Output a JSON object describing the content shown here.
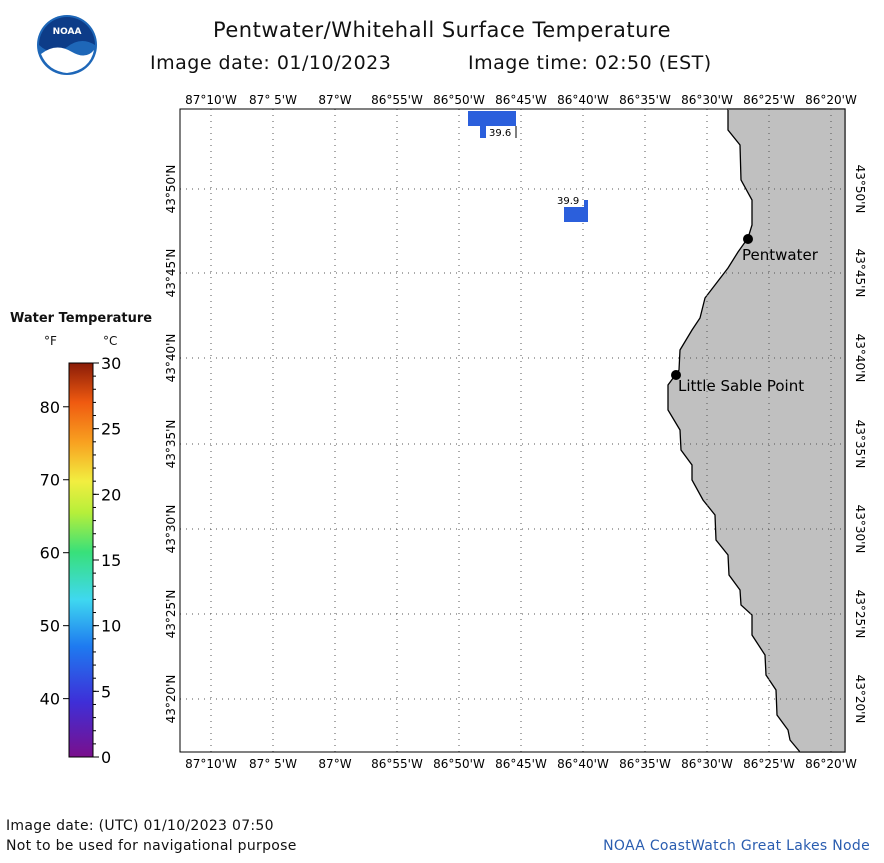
{
  "header": {
    "title": "Pentwater/Whitehall Surface Temperature",
    "image_date_label": "Image date: 01/10/2023",
    "image_time_label": "Image time: 02:50 (EST)"
  },
  "logo": {
    "text": "NOAA"
  },
  "map": {
    "lon_labels": [
      "87°10'W",
      "87° 5'W",
      "87°W",
      "86°55'W",
      "86°50'W",
      "86°45'W",
      "86°40'W",
      "86°35'W",
      "86°30'W",
      "86°25'W",
      "86°20'W"
    ],
    "lat_labels": [
      "43°50'N",
      "43°45'N",
      "43°40'N",
      "43°35'N",
      "43°30'N",
      "43°25'N",
      "43°20'N"
    ],
    "places": [
      {
        "name": "Pentwater"
      },
      {
        "name": "Little Sable Point"
      }
    ],
    "temperature_labels": [
      "39.6",
      "39.9"
    ],
    "colors": {
      "land": "#c0c0c0",
      "water": "#ffffff",
      "sst_pixels": "#2b5fdc",
      "coast": "#000000"
    }
  },
  "legend": {
    "title": "Water Temperature",
    "unit_f": "°F",
    "unit_c": "°C",
    "f_ticks": [
      "80",
      "70",
      "60",
      "50",
      "40"
    ],
    "c_ticks": [
      "30",
      "25",
      "20",
      "15",
      "10",
      "5",
      "0"
    ]
  },
  "footer": {
    "utc_date": "Image date: (UTC) 01/10/2023  07:50",
    "disclaimer": "Not to be used for navigational purpose",
    "credit": "NOAA CoastWatch Great Lakes Node"
  }
}
